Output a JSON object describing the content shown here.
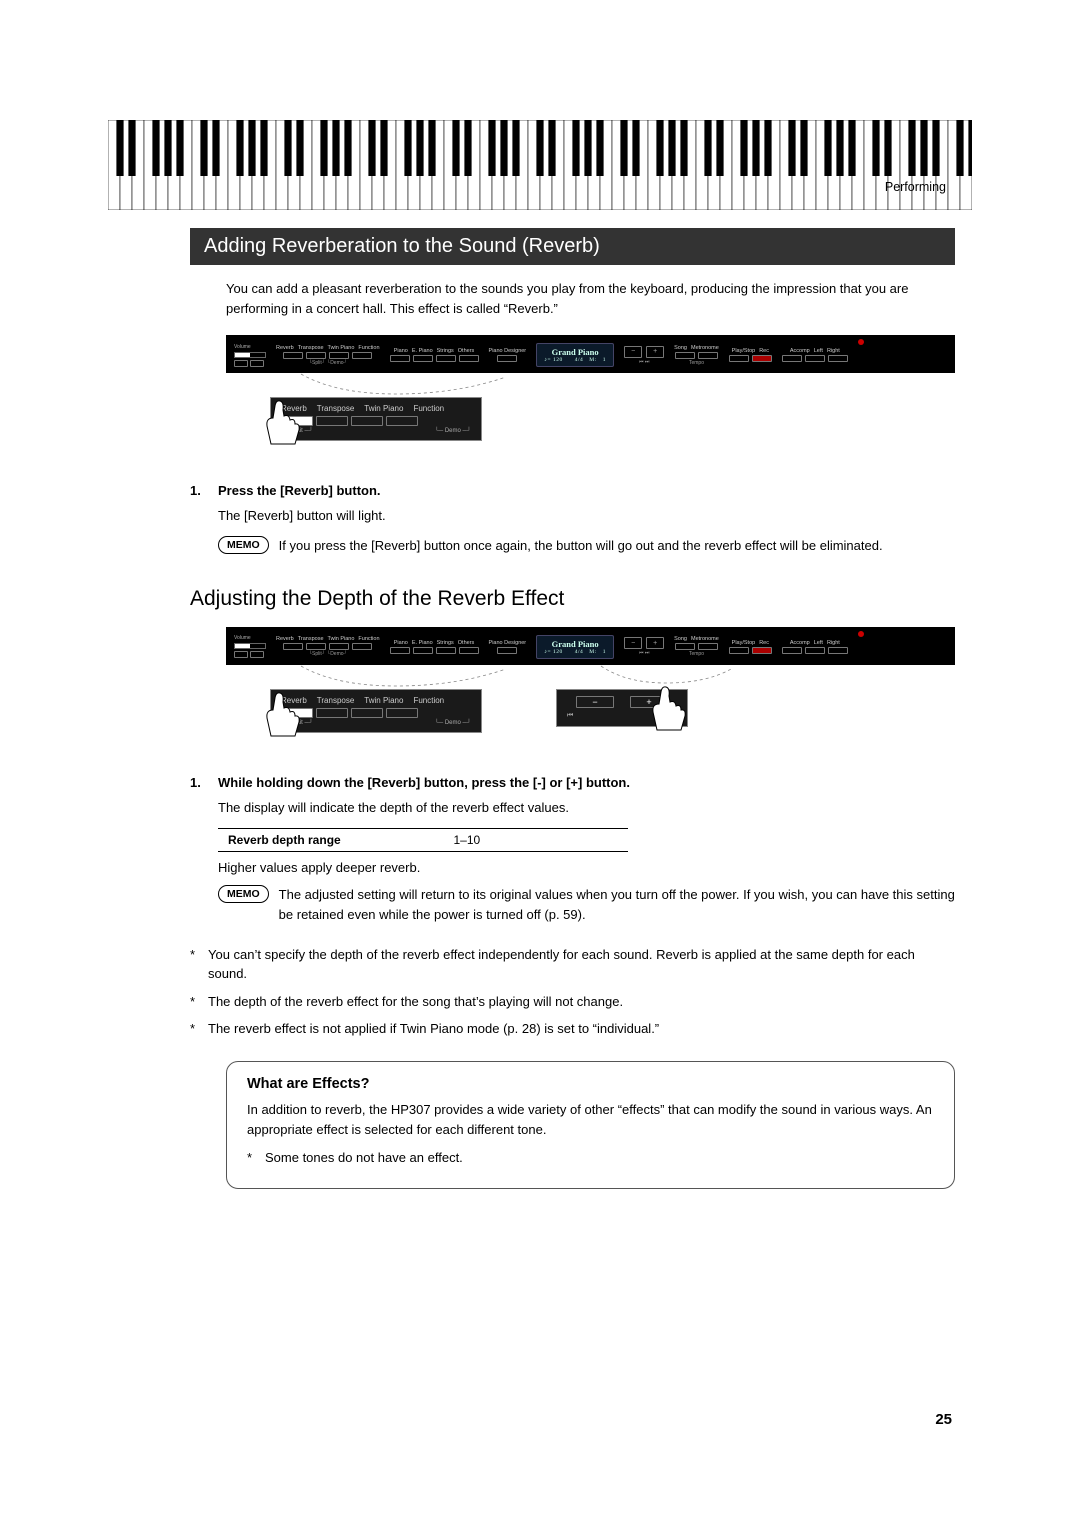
{
  "header": {
    "section_label": "Performing"
  },
  "title_bar": "Adding Reverberation to the Sound (Reverb)",
  "intro": "You can add a pleasant reverberation to the sounds you play from the keyboard, producing the impression that you are performing in a concert hall. This effect is called “Reverb.”",
  "panel": {
    "screen_title": "Grand Piano",
    "screen_sub": "♪= 120  4/4 M: 1",
    "group1_labels": [
      "Reverb",
      "Transpose",
      "Twin Piano",
      "Function"
    ],
    "group1_sub_left": "Split",
    "group1_sub_right": "Demo",
    "group2_labels": [
      "Piano",
      "E. Piano",
      "Strings",
      "Others"
    ],
    "piano_designer": "Piano Designer",
    "song_labels": [
      "Song",
      "Metronome"
    ],
    "song_sub": "Tempo",
    "play_labels": [
      "Play/Stop",
      "Rec"
    ],
    "acc_labels": [
      "Accomp",
      "Left",
      "Right"
    ],
    "volume_label": "Volume",
    "pm_minus": "−",
    "pm_plus": "+",
    "prev_icon": "⏮",
    "next_icon": "⏭"
  },
  "step1": {
    "num": "1.",
    "title": "Press the [Reverb] button.",
    "body": "The [Reverb] button will light.",
    "memo_label": "MEMO",
    "memo_text": "If you press the [Reverb] button once again, the button will go out and the reverb effect will be eliminated."
  },
  "h2": "Adjusting the Depth of the Reverb Effect",
  "step2": {
    "num": "1.",
    "title": "While holding down the [Reverb] button, press the [-] or [+] button.",
    "body": "The display will indicate the depth of the reverb effect values.",
    "table": {
      "label": "Reverb depth range",
      "value": "1–10"
    },
    "note_after": "Higher values apply deeper reverb.",
    "memo_label": "MEMO",
    "memo_text": "The adjusted setting will return to its original values when you turn off the power. If you wish, you can have this setting be retained even while the power is turned off (p. 59)."
  },
  "star_notes": [
    "You can’t specify the depth of the reverb effect independently for each sound. Reverb is applied at the same depth for each sound.",
    "The depth of the reverb effect for the song that’s playing will not change.",
    "The reverb effect is not applied if Twin Piano mode (p. 28) is set to “individual.”"
  ],
  "effects_box": {
    "title": "What are Effects?",
    "body": "In addition to reverb, the HP307 provides a wide variety of other “effects” that can modify the sound in various ways. An appropriate effect is selected for each different tone.",
    "note": "Some tones do not have an effect."
  },
  "page_number": "25"
}
